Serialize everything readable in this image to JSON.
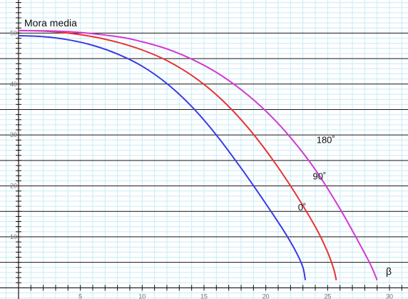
{
  "chart_data": {
    "type": "line",
    "title": "",
    "ylabel": "Mora media",
    "xlabel": "β",
    "xlim": [
      -1.5,
      31.5
    ],
    "ylim": [
      -2.2,
      56.5
    ],
    "x_ticks": [
      5,
      10,
      15,
      20,
      25,
      30
    ],
    "x_minor_step": 1,
    "y_ticks": [
      10,
      20,
      30,
      40,
      50
    ],
    "y_major_lines": [
      5,
      10,
      15,
      20,
      25,
      30,
      35,
      40,
      45,
      50
    ],
    "grid": true,
    "minor_grid_step": 1,
    "colors": {
      "minor_grid": "#c9ebf5",
      "major_grid": "#1a1a1a",
      "axis": "#111111"
    },
    "series": [
      {
        "name": "0˚",
        "color": "#3a3ae6",
        "points": [
          [
            0,
            49.5
          ],
          [
            2,
            49.3
          ],
          [
            4,
            48.7
          ],
          [
            6,
            47.6
          ],
          [
            8,
            45.9
          ],
          [
            10,
            43.5
          ],
          [
            12,
            40.1
          ],
          [
            14,
            35.6
          ],
          [
            16,
            30.0
          ],
          [
            18,
            23.5
          ],
          [
            20,
            16.5
          ],
          [
            21.5,
            11.0
          ],
          [
            22.5,
            6.8
          ],
          [
            23,
            4.0
          ],
          [
            23.2,
            1.5
          ]
        ],
        "label_at": [
          22.6,
          15.2
        ]
      },
      {
        "name": "90˚",
        "color": "#e83232",
        "points": [
          [
            0,
            50.5
          ],
          [
            2,
            50.4
          ],
          [
            4,
            50.0
          ],
          [
            6,
            49.3
          ],
          [
            8,
            48.2
          ],
          [
            10,
            46.7
          ],
          [
            12,
            44.6
          ],
          [
            14,
            41.7
          ],
          [
            16,
            37.9
          ],
          [
            18,
            33.0
          ],
          [
            20,
            27.0
          ],
          [
            22,
            20.0
          ],
          [
            24,
            12.0
          ],
          [
            25,
            7.0
          ],
          [
            25.5,
            3.6
          ],
          [
            25.7,
            1.5
          ]
        ],
        "label_at": [
          23.8,
          21.3
        ]
      },
      {
        "name": "180˚",
        "color": "#d23ad2",
        "points": [
          [
            0,
            50.5
          ],
          [
            4,
            50.3
          ],
          [
            8,
            49.3
          ],
          [
            10,
            48.3
          ],
          [
            12,
            46.9
          ],
          [
            14,
            44.9
          ],
          [
            16,
            42.3
          ],
          [
            18,
            38.9
          ],
          [
            20,
            34.7
          ],
          [
            22,
            29.5
          ],
          [
            24,
            23.2
          ],
          [
            26,
            15.5
          ],
          [
            27.5,
            9.0
          ],
          [
            28.5,
            4.4
          ],
          [
            29,
            1.5
          ]
        ],
        "label_at": [
          24.1,
          28.4
        ]
      }
    ]
  }
}
